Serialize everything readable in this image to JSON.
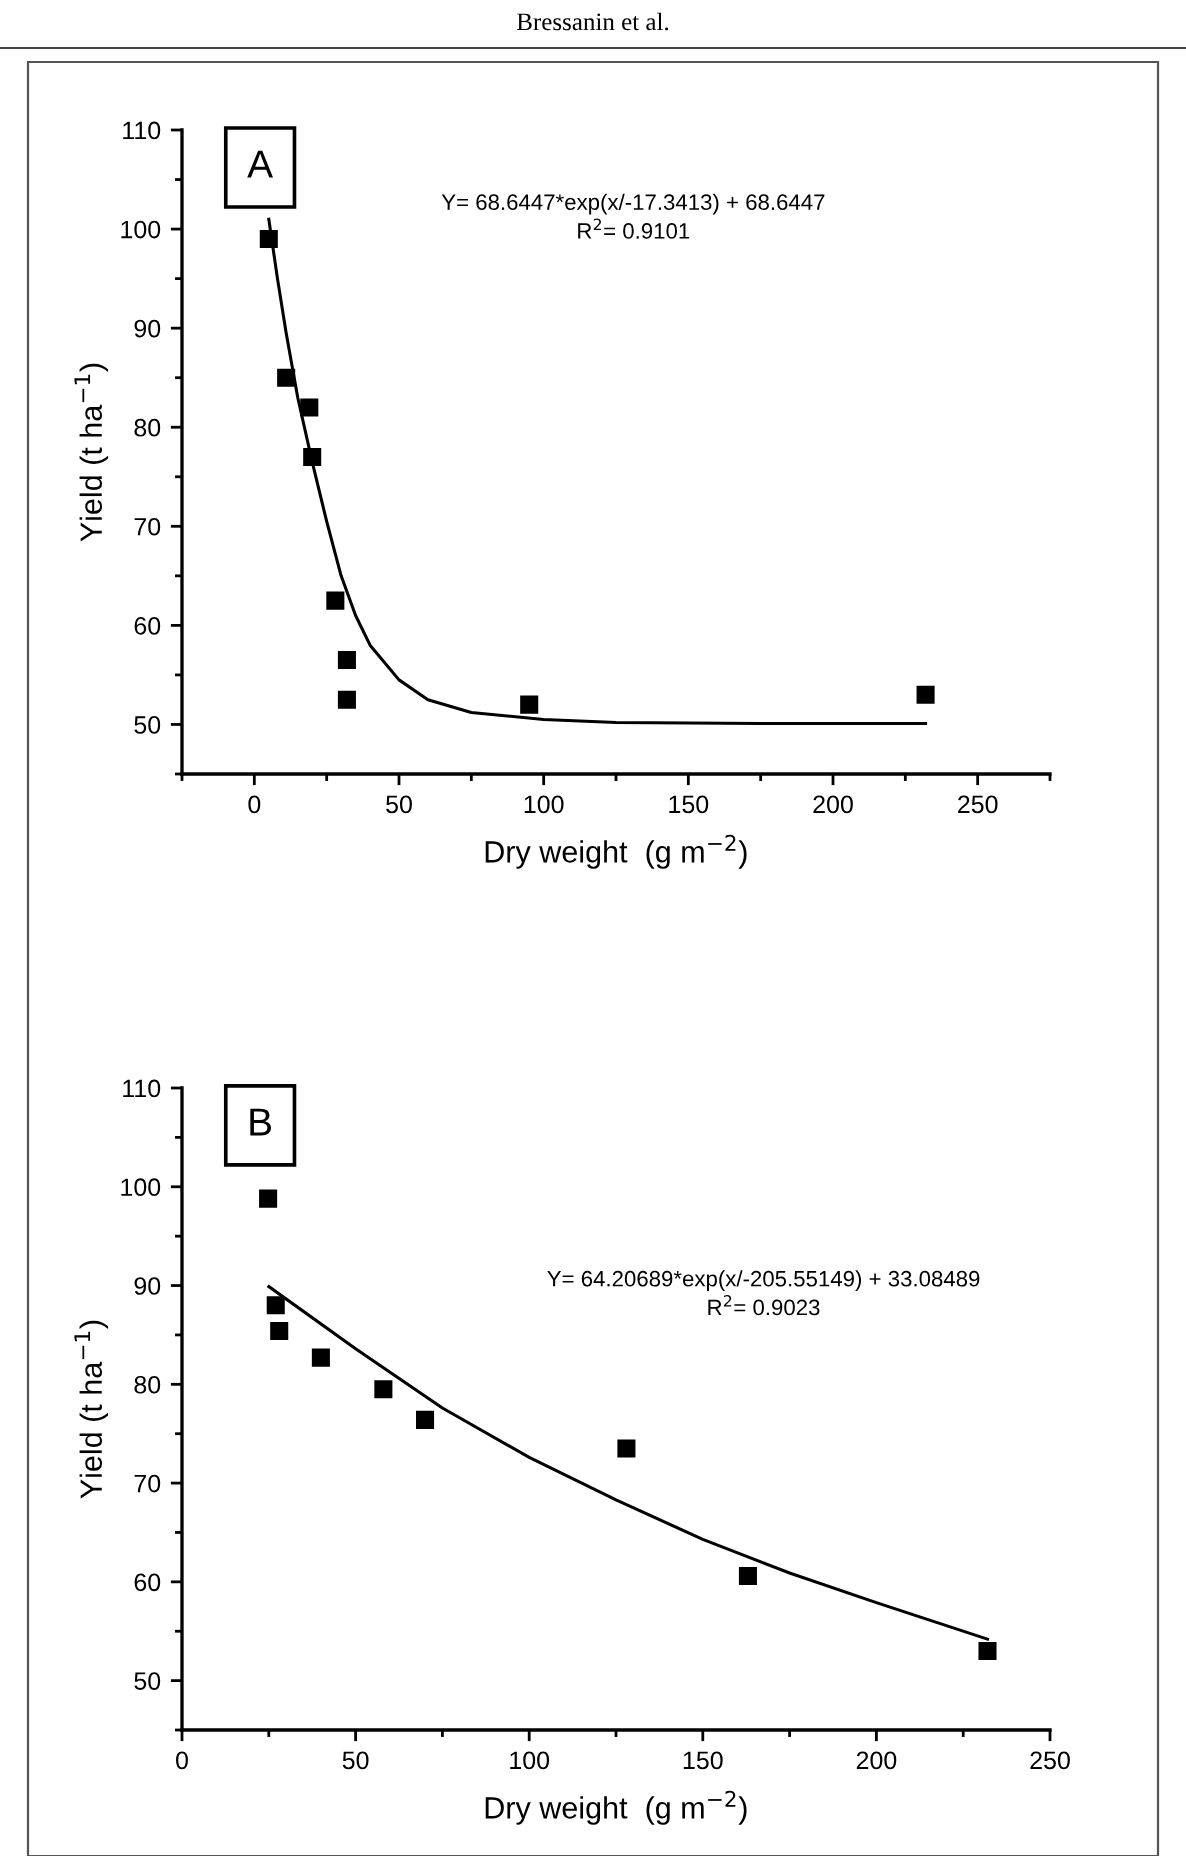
{
  "chart_data": [
    {
      "type": "scatter",
      "title": "A",
      "xlabel": "Dry weight  (g m$^{−2}$)",
      "ylabel": "Yield (t ha$^{−1}$)",
      "annotations": [
        "Bressanin et al.",
        "Y= 68.6447*exp(x/-17.3413) + 68.6447",
        "R$^{2}$= 0.9101"
      ],
      "xlim": [
        -25,
        275
      ],
      "xticks": [
        0,
        50,
        100,
        150,
        200,
        250
      ],
      "ylim": [
        45,
        110
      ],
      "yticks": [
        50,
        60,
        70,
        80,
        90,
        100,
        110
      ],
      "grid": false,
      "legend": false,
      "marker": "square",
      "series": [
        {
          "color": "#000000",
          "x": [
            5,
            11,
            19,
            20,
            28,
            32,
            32,
            95,
            232
          ],
          "values": [
            99,
            85,
            82,
            77,
            62.5,
            56.5,
            52.5,
            52,
            53
          ]
        },
        {
          "type": "line",
          "color": "#000000",
          "marker": "none",
          "line_style": "solid",
          "x": [
            5,
            8,
            11,
            15,
            20,
            25,
            30,
            35,
            40,
            50,
            60,
            75,
            100,
            125,
            175,
            232
          ],
          "values": [
            101,
            95,
            89.5,
            83,
            76.5,
            70.5,
            65,
            61,
            58,
            54.5,
            52.5,
            51.2,
            50.5,
            50.2,
            50.1,
            50.1
          ]
        }
      ]
    },
    {
      "type": "scatter",
      "title": "B",
      "xlabel": "Dry weight  (g m$^{−2}$)",
      "ylabel": "Yield (t ha$^{−1}$)",
      "annotations": [
        "Y= 64.20689*exp(x/-205.55149) + 33.08489",
        "R$^{2}$= 0.9023"
      ],
      "xlim": [
        0,
        250
      ],
      "xticks": [
        0,
        50,
        100,
        150,
        200,
        250
      ],
      "ylim": [
        45,
        110
      ],
      "yticks": [
        50,
        60,
        70,
        80,
        90,
        100,
        110
      ],
      "grid": false,
      "legend": false,
      "marker": "square",
      "series": [
        {
          "color": "#000000",
          "x": [
            24.8,
            27,
            28,
            40,
            58,
            70,
            128,
            163,
            232
          ],
          "values": [
            98.8,
            88,
            85.4,
            82.7,
            79.5,
            76.4,
            73.5,
            60.6,
            53
          ]
        },
        {
          "type": "line",
          "color": "#000000",
          "marker": "none",
          "line_style": "solid",
          "x": [
            25,
            50,
            75,
            100,
            125,
            150,
            175,
            200,
            232
          ],
          "values": [
            89.9,
            83.6,
            77.6,
            72.6,
            68.3,
            64.3,
            60.9,
            57.9,
            54.2
          ]
        }
      ]
    }
  ]
}
